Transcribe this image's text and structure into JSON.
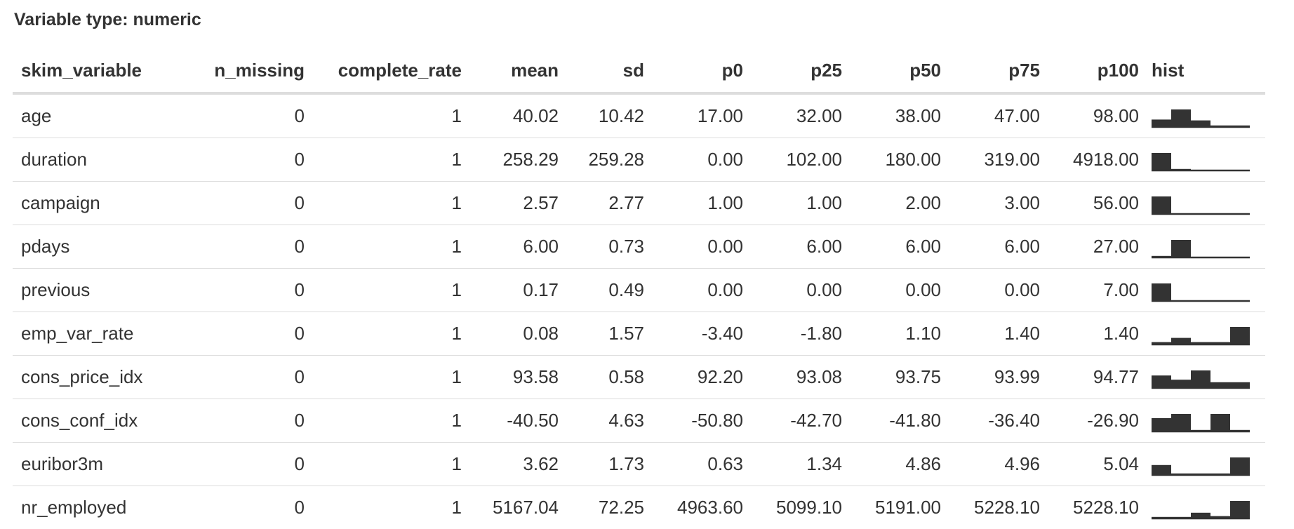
{
  "caption": "Variable type: numeric",
  "columns": [
    "skim_variable",
    "n_missing",
    "complete_rate",
    "mean",
    "sd",
    "p0",
    "p25",
    "p50",
    "p75",
    "p100",
    "hist"
  ],
  "rows": [
    {
      "skim_variable": "age",
      "n_missing": "0",
      "complete_rate": "1",
      "mean": "40.02",
      "sd": "10.42",
      "p0": "17.00",
      "p25": "32.00",
      "p50": "38.00",
      "p75": "47.00",
      "p100": "98.00",
      "hist": [
        0.4,
        1,
        0.35,
        0.05,
        0.05
      ]
    },
    {
      "skim_variable": "duration",
      "n_missing": "0",
      "complete_rate": "1",
      "mean": "258.29",
      "sd": "259.28",
      "p0": "0.00",
      "p25": "102.00",
      "p50": "180.00",
      "p75": "319.00",
      "p100": "4918.00",
      "hist": [
        1,
        0.05,
        0,
        0,
        0
      ]
    },
    {
      "skim_variable": "campaign",
      "n_missing": "0",
      "complete_rate": "1",
      "mean": "2.57",
      "sd": "2.77",
      "p0": "1.00",
      "p25": "1.00",
      "p50": "2.00",
      "p75": "3.00",
      "p100": "56.00",
      "hist": [
        1,
        0,
        0,
        0,
        0
      ]
    },
    {
      "skim_variable": "pdays",
      "n_missing": "0",
      "complete_rate": "1",
      "mean": "6.00",
      "sd": "0.73",
      "p0": "0.00",
      "p25": "6.00",
      "p50": "6.00",
      "p75": "6.00",
      "p100": "27.00",
      "hist": [
        0.05,
        1,
        0,
        0,
        0
      ]
    },
    {
      "skim_variable": "previous",
      "n_missing": "0",
      "complete_rate": "1",
      "mean": "0.17",
      "sd": "0.49",
      "p0": "0.00",
      "p25": "0.00",
      "p50": "0.00",
      "p75": "0.00",
      "p100": "7.00",
      "hist": [
        1,
        0,
        0,
        0,
        0
      ]
    },
    {
      "skim_variable": "emp_var_rate",
      "n_missing": "0",
      "complete_rate": "1",
      "mean": "0.08",
      "sd": "1.57",
      "p0": "-3.40",
      "p25": "-1.80",
      "p50": "1.10",
      "p75": "1.40",
      "p100": "1.40",
      "hist": [
        0.1,
        0.35,
        0.1,
        0.1,
        1
      ]
    },
    {
      "skim_variable": "cons_price_idx",
      "n_missing": "0",
      "complete_rate": "1",
      "mean": "93.58",
      "sd": "0.58",
      "p0": "92.20",
      "p25": "93.08",
      "p50": "93.75",
      "p75": "93.99",
      "p100": "94.77",
      "hist": [
        0.7,
        0.45,
        1,
        0.3,
        0.3
      ]
    },
    {
      "skim_variable": "cons_conf_idx",
      "n_missing": "0",
      "complete_rate": "1",
      "mean": "-40.50",
      "sd": "4.63",
      "p0": "-50.80",
      "p25": "-42.70",
      "p50": "-41.80",
      "p75": "-36.40",
      "p100": "-26.90",
      "hist": [
        0.75,
        1,
        0.05,
        1,
        0.05
      ]
    },
    {
      "skim_variable": "euribor3m",
      "n_missing": "0",
      "complete_rate": "1",
      "mean": "3.62",
      "sd": "1.73",
      "p0": "0.63",
      "p25": "1.34",
      "p50": "4.86",
      "p75": "4.96",
      "p100": "5.04",
      "hist": [
        0.55,
        0.05,
        0.05,
        0.05,
        1
      ]
    },
    {
      "skim_variable": "nr_employed",
      "n_missing": "0",
      "complete_rate": "1",
      "mean": "5167.04",
      "sd": "72.25",
      "p0": "4963.60",
      "p25": "5099.10",
      "p50": "5191.00",
      "p75": "5228.10",
      "p100": "5228.10",
      "hist": [
        0.05,
        0.05,
        0.3,
        0.1,
        1
      ]
    }
  ],
  "colors": {
    "text": "#333333",
    "bar": "#333333",
    "rule": "#dddddd"
  }
}
